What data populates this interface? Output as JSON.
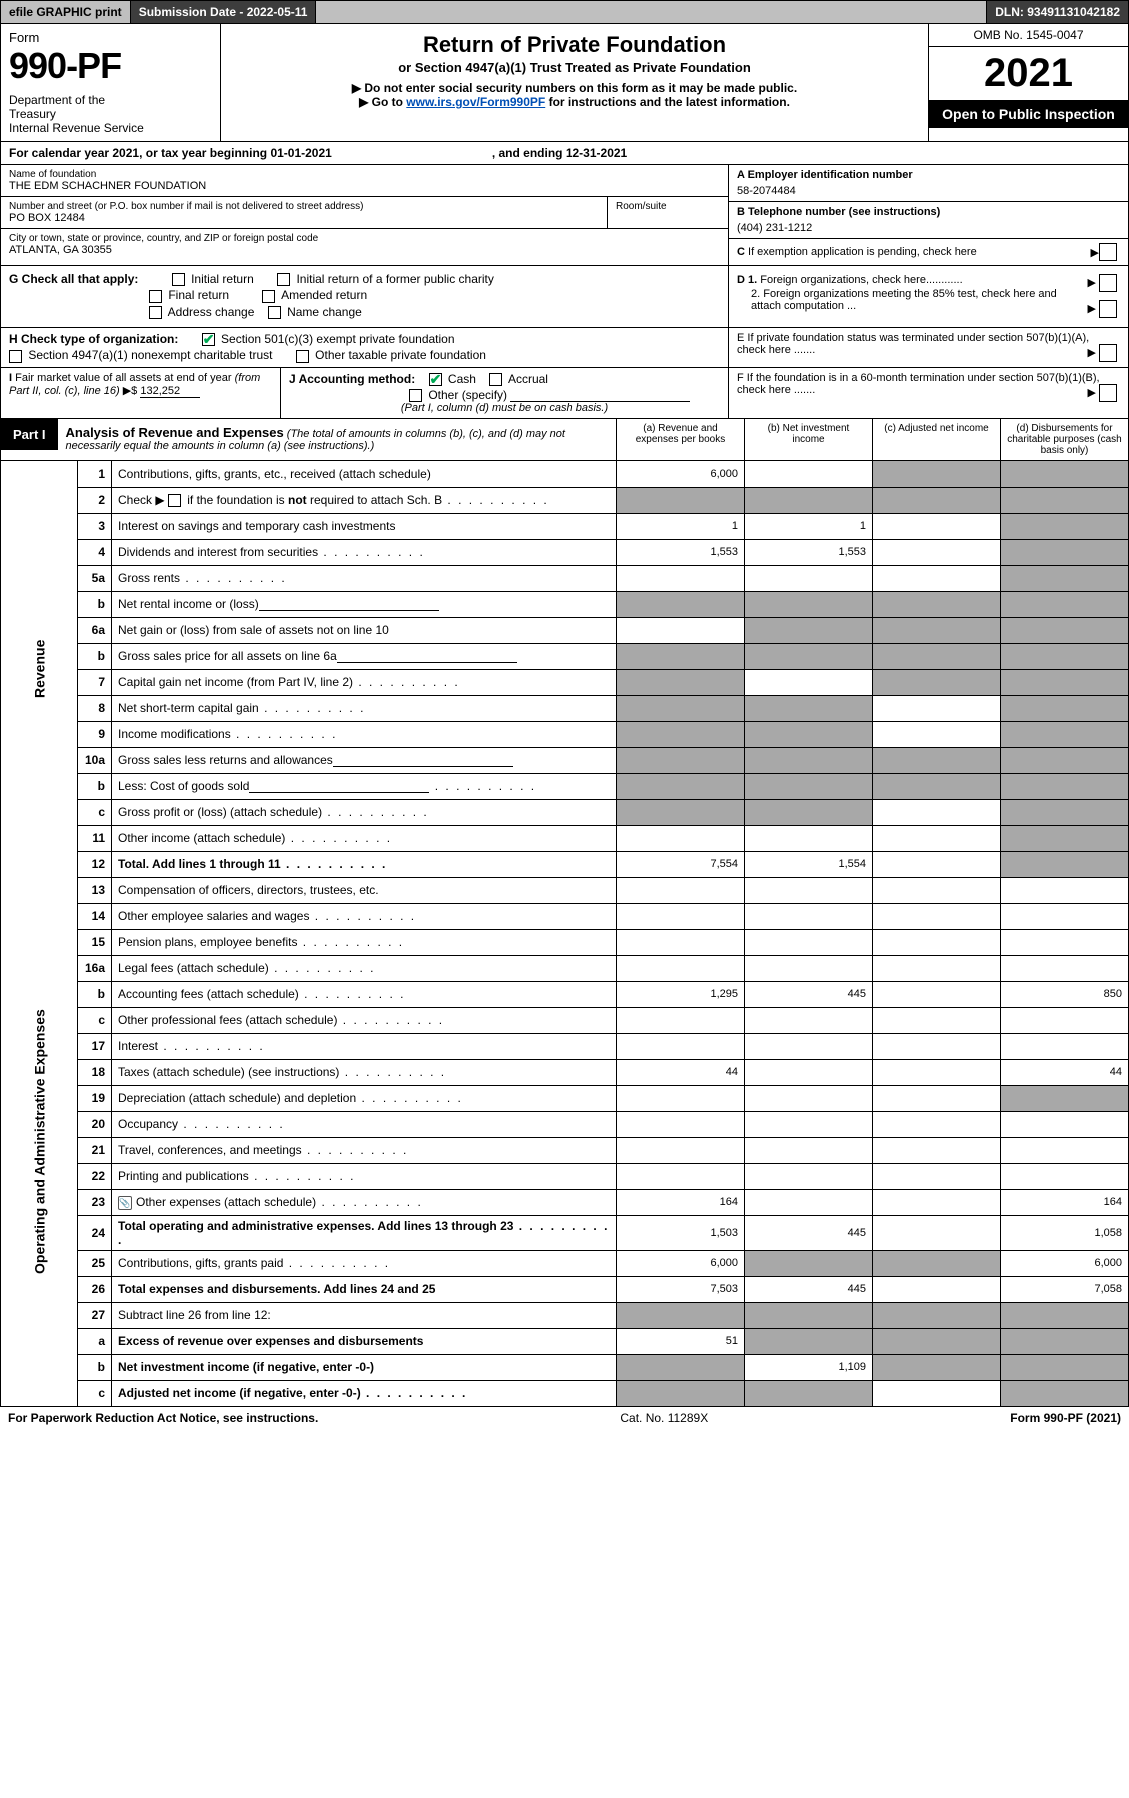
{
  "topbar": {
    "efile": "efile GRAPHIC print",
    "subdate_lbl": "Submission Date - 2022-05-11",
    "dln": "DLN: 93491131042182"
  },
  "header": {
    "form": "Form",
    "num": "990-PF",
    "dept": "Department of the Treasury\nInternal Revenue Service",
    "title": "Return of Private Foundation",
    "subtitle": "or Section 4947(a)(1) Trust Treated as Private Foundation",
    "note1": "▶ Do not enter social security numbers on this form as it may be made public.",
    "note2_pre": "▶ Go to ",
    "note2_link": "www.irs.gov/Form990PF",
    "note2_post": " for instructions and the latest information.",
    "omb": "OMB No. 1545-0047",
    "year": "2021",
    "open": "Open to Public Inspection"
  },
  "calyear": {
    "text": "For calendar year 2021, or tax year beginning 01-01-2021",
    "ending": ", and ending 12-31-2021"
  },
  "id": {
    "name_lbl": "Name of foundation",
    "name": "THE EDM SCHACHNER FOUNDATION",
    "addr_lbl": "Number and street (or P.O. box number if mail is not delivered to street address)",
    "addr": "PO BOX 12484",
    "room_lbl": "Room/suite",
    "city_lbl": "City or town, state or province, country, and ZIP or foreign postal code",
    "city": "ATLANTA, GA  30355",
    "a_lbl": "A Employer identification number",
    "a_val": "58-2074484",
    "b_lbl": "B Telephone number (see instructions)",
    "b_val": "(404) 231-1212",
    "c_lbl": "C If exemption application is pending, check here"
  },
  "g": {
    "lbl": "G Check all that apply:",
    "opts": [
      "Initial return",
      "Initial return of a former public charity",
      "Final return",
      "Amended return",
      "Address change",
      "Name change"
    ]
  },
  "d": {
    "d1": "D 1. Foreign organizations, check here............",
    "d2": "2. Foreign organizations meeting the 85% test, check here and attach computation ...",
    "e": "E  If private foundation status was terminated under section 507(b)(1)(A), check here .......",
    "f": "F  If the foundation is in a 60-month termination under section 507(b)(1)(B), check here ......."
  },
  "h": {
    "lbl": "H Check type of organization:",
    "o1": "Section 501(c)(3) exempt private foundation",
    "o2": "Section 4947(a)(1) nonexempt charitable trust",
    "o3": "Other taxable private foundation"
  },
  "i": {
    "lbl": "I Fair market value of all assets at end of year (from Part II, col. (c), line 16)",
    "val": "132,252"
  },
  "j": {
    "lbl": "J Accounting method:",
    "cash": "Cash",
    "accrual": "Accrual",
    "other": "Other (specify)",
    "note": "(Part I, column (d) must be on cash basis.)"
  },
  "part1": {
    "tab": "Part I",
    "title": "Analysis of Revenue and Expenses",
    "note": "(The total of amounts in columns (b), (c), and (d) may not necessarily equal the amounts in column (a) (see instructions).)",
    "col_a": "(a)   Revenue and expenses per books",
    "col_b": "(b)   Net investment income",
    "col_c": "(c)   Adjusted net income",
    "col_d": "(d)  Disbursements for charitable purposes (cash basis only)"
  },
  "sidelabels": {
    "rev": "Revenue",
    "exp": "Operating and Administrative Expenses"
  },
  "rows": [
    {
      "n": "1",
      "d": "Contributions, gifts, grants, etc., received (attach schedule)",
      "a": "6,000",
      "b": "",
      "c": "shade",
      "dd": "shade"
    },
    {
      "n": "2",
      "d": "Check ▶ ☐ if the foundation is not required to attach Sch. B",
      "a": "shade",
      "b": "shade",
      "c": "shade",
      "dd": "shade",
      "bold": false,
      "dots": true
    },
    {
      "n": "3",
      "d": "Interest on savings and temporary cash investments",
      "a": "1",
      "b": "1",
      "c": "",
      "dd": "shade"
    },
    {
      "n": "4",
      "d": "Dividends and interest from securities",
      "a": "1,553",
      "b": "1,553",
      "c": "",
      "dd": "shade",
      "dots": true
    },
    {
      "n": "5a",
      "d": "Gross rents",
      "a": "",
      "b": "",
      "c": "",
      "dd": "shade",
      "dots": true
    },
    {
      "n": "b",
      "d": "Net rental income or (loss)",
      "a": "shade",
      "b": "shade",
      "c": "shade",
      "dd": "shade",
      "ul": true
    },
    {
      "n": "6a",
      "d": "Net gain or (loss) from sale of assets not on line 10",
      "a": "",
      "b": "shade",
      "c": "shade",
      "dd": "shade"
    },
    {
      "n": "b",
      "d": "Gross sales price for all assets on line 6a",
      "a": "shade",
      "b": "shade",
      "c": "shade",
      "dd": "shade",
      "ul": true
    },
    {
      "n": "7",
      "d": "Capital gain net income (from Part IV, line 2)",
      "a": "shade",
      "b": "",
      "c": "shade",
      "dd": "shade",
      "dots": true
    },
    {
      "n": "8",
      "d": "Net short-term capital gain",
      "a": "shade",
      "b": "shade",
      "c": "",
      "dd": "shade",
      "dots": true
    },
    {
      "n": "9",
      "d": "Income modifications",
      "a": "shade",
      "b": "shade",
      "c": "",
      "dd": "shade",
      "dots": true
    },
    {
      "n": "10a",
      "d": "Gross sales less returns and allowances",
      "a": "shade",
      "b": "shade",
      "c": "shade",
      "dd": "shade",
      "ul": true
    },
    {
      "n": "b",
      "d": "Less: Cost of goods sold",
      "a": "shade",
      "b": "shade",
      "c": "shade",
      "dd": "shade",
      "ul": true,
      "dots": true
    },
    {
      "n": "c",
      "d": "Gross profit or (loss) (attach schedule)",
      "a": "shade",
      "b": "shade",
      "c": "",
      "dd": "shade",
      "dots": true
    },
    {
      "n": "11",
      "d": "Other income (attach schedule)",
      "a": "",
      "b": "",
      "c": "",
      "dd": "shade",
      "dots": true
    },
    {
      "n": "12",
      "d": "Total. Add lines 1 through 11",
      "a": "7,554",
      "b": "1,554",
      "c": "",
      "dd": "shade",
      "bold": true,
      "dots": true
    },
    {
      "n": "13",
      "d": "Compensation of officers, directors, trustees, etc.",
      "a": "",
      "b": "",
      "c": "",
      "dd": ""
    },
    {
      "n": "14",
      "d": "Other employee salaries and wages",
      "a": "",
      "b": "",
      "c": "",
      "dd": "",
      "dots": true
    },
    {
      "n": "15",
      "d": "Pension plans, employee benefits",
      "a": "",
      "b": "",
      "c": "",
      "dd": "",
      "dots": true
    },
    {
      "n": "16a",
      "d": "Legal fees (attach schedule)",
      "a": "",
      "b": "",
      "c": "",
      "dd": "",
      "dots": true
    },
    {
      "n": "b",
      "d": "Accounting fees (attach schedule)",
      "a": "1,295",
      "b": "445",
      "c": "",
      "dd": "850",
      "dots": true
    },
    {
      "n": "c",
      "d": "Other professional fees (attach schedule)",
      "a": "",
      "b": "",
      "c": "",
      "dd": "",
      "dots": true
    },
    {
      "n": "17",
      "d": "Interest",
      "a": "",
      "b": "",
      "c": "",
      "dd": "",
      "dots": true
    },
    {
      "n": "18",
      "d": "Taxes (attach schedule) (see instructions)",
      "a": "44",
      "b": "",
      "c": "",
      "dd": "44",
      "dots": true
    },
    {
      "n": "19",
      "d": "Depreciation (attach schedule) and depletion",
      "a": "",
      "b": "",
      "c": "",
      "dd": "shade",
      "dots": true
    },
    {
      "n": "20",
      "d": "Occupancy",
      "a": "",
      "b": "",
      "c": "",
      "dd": "",
      "dots": true
    },
    {
      "n": "21",
      "d": "Travel, conferences, and meetings",
      "a": "",
      "b": "",
      "c": "",
      "dd": "",
      "dots": true
    },
    {
      "n": "22",
      "d": "Printing and publications",
      "a": "",
      "b": "",
      "c": "",
      "dd": "",
      "dots": true
    },
    {
      "n": "23",
      "d": "Other expenses (attach schedule)",
      "a": "164",
      "b": "",
      "c": "",
      "dd": "164",
      "dots": true,
      "icon": true
    },
    {
      "n": "24",
      "d": "Total operating and administrative expenses. Add lines 13 through 23",
      "a": "1,503",
      "b": "445",
      "c": "",
      "dd": "1,058",
      "bold": true,
      "dots": true
    },
    {
      "n": "25",
      "d": "Contributions, gifts, grants paid",
      "a": "6,000",
      "b": "shade",
      "c": "shade",
      "dd": "6,000",
      "dots": true
    },
    {
      "n": "26",
      "d": "Total expenses and disbursements. Add lines 24 and 25",
      "a": "7,503",
      "b": "445",
      "c": "",
      "dd": "7,058",
      "bold": true
    },
    {
      "n": "27",
      "d": "Subtract line 26 from line 12:",
      "a": "shade",
      "b": "shade",
      "c": "shade",
      "dd": "shade"
    },
    {
      "n": "a",
      "d": "Excess of revenue over expenses and disbursements",
      "a": "51",
      "b": "shade",
      "c": "shade",
      "dd": "shade",
      "bold": true
    },
    {
      "n": "b",
      "d": "Net investment income (if negative, enter -0-)",
      "a": "shade",
      "b": "1,109",
      "c": "shade",
      "dd": "shade",
      "bold": true
    },
    {
      "n": "c",
      "d": "Adjusted net income (if negative, enter -0-)",
      "a": "shade",
      "b": "shade",
      "c": "",
      "dd": "shade",
      "bold": true,
      "dots": true
    }
  ],
  "footer": {
    "left": "For Paperwork Reduction Act Notice, see instructions.",
    "mid": "Cat. No. 11289X",
    "right": "Form 990-PF (2021)"
  },
  "colors": {
    "shade": "#a8a8a8",
    "darkbar": "#3d3d3d",
    "graybar": "#bfbfbf",
    "link": "#004fb5"
  }
}
